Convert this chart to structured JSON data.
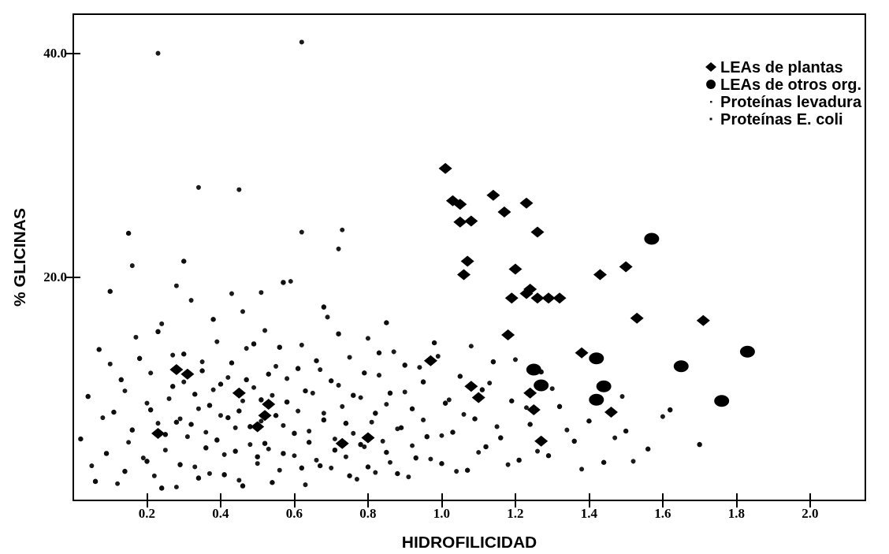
{
  "chart_data": {
    "type": "scatter",
    "xlabel": "HIDROFILICIDAD",
    "ylabel": "% GLICINAS",
    "xlim": [
      0,
      2.15
    ],
    "ylim": [
      0,
      43.5
    ],
    "xticks": [
      {
        "value": 0.2,
        "label": "0.2"
      },
      {
        "value": 0.4,
        "label": "0.4"
      },
      {
        "value": 0.6,
        "label": "0.6"
      },
      {
        "value": 0.8,
        "label": "0.8"
      },
      {
        "value": 1.0,
        "label": "1.0"
      },
      {
        "value": 1.2,
        "label": "1.2"
      },
      {
        "value": 1.4,
        "label": "1.4"
      },
      {
        "value": 1.6,
        "label": "1.6"
      },
      {
        "value": 1.8,
        "label": "1.8"
      },
      {
        "value": 2.0,
        "label": "2.0"
      }
    ],
    "yticks": [
      {
        "value": 20,
        "label": "20.0"
      },
      {
        "value": 40,
        "label": "40.0"
      }
    ],
    "grid": false,
    "legend": "top right",
    "series": [
      {
        "name": "Proteínas levadura",
        "color": "#1a1a1a",
        "marker": "circle",
        "x": [
          0.05,
          0.08,
          0.1,
          0.12,
          0.14,
          0.15,
          0.17,
          0.23,
          0.19,
          0.2,
          0.21,
          0.22,
          0.23,
          0.24,
          0.25,
          0.26,
          0.27,
          0.28,
          0.29,
          0.3,
          0.31,
          0.32,
          0.33,
          0.34,
          0.35,
          0.36,
          0.37,
          0.38,
          0.39,
          0.4,
          0.41,
          0.42,
          0.43,
          0.44,
          0.45,
          0.46,
          0.47,
          0.48,
          0.49,
          0.5,
          0.51,
          0.52,
          0.53,
          0.54,
          0.55,
          0.56,
          0.57,
          0.58,
          0.59,
          0.6,
          0.61,
          0.62,
          0.63,
          0.64,
          0.65,
          0.66,
          0.67,
          0.68,
          0.69,
          0.7,
          0.71,
          0.72,
          0.73,
          0.74,
          0.75,
          0.76,
          0.77,
          0.78,
          0.79,
          0.8,
          0.81,
          0.82,
          0.83,
          0.84,
          0.85,
          0.86,
          0.87,
          0.88,
          0.9,
          0.91,
          0.92,
          0.94,
          0.95,
          0.97,
          0.99,
          1.0,
          1.02,
          1.04,
          1.06,
          1.08,
          1.1,
          1.13,
          1.15,
          1.18,
          1.2,
          1.23,
          1.26,
          1.3,
          1.34,
          1.38,
          1.49,
          1.47,
          1.52,
          1.6,
          0.34,
          0.62,
          0.16,
          0.72,
          0.28,
          0.51,
          0.46,
          0.62,
          0.45,
          0.73
        ],
        "values": [
          3.1,
          7.4,
          12.2,
          1.5,
          9.8,
          5.2,
          14.6,
          40.0,
          3.8,
          8.7,
          11.4,
          2.2,
          6.9,
          15.8,
          4.5,
          9.1,
          13.0,
          1.2,
          7.3,
          10.6,
          5.7,
          17.9,
          3.0,
          8.2,
          12.4,
          6.1,
          2.4,
          9.9,
          14.2,
          7.6,
          4.1,
          11.0,
          18.5,
          6.5,
          1.8,
          8.9,
          13.6,
          5.0,
          10.1,
          3.3,
          7.1,
          15.2,
          4.6,
          9.4,
          12.0,
          2.7,
          6.7,
          10.9,
          19.6,
          4.0,
          8.0,
          13.9,
          1.4,
          6.2,
          9.6,
          3.6,
          11.7,
          7.8,
          16.4,
          2.9,
          5.5,
          10.3,
          8.4,
          3.9,
          12.8,
          6.0,
          1.9,
          9.2,
          4.8,
          14.5,
          7.0,
          2.5,
          11.2,
          5.3,
          8.6,
          3.4,
          13.3,
          6.4,
          9.7,
          2.1,
          4.9,
          11.9,
          7.2,
          3.7,
          12.9,
          5.8,
          9.0,
          2.6,
          7.7,
          13.8,
          4.3,
          10.5,
          6.6,
          3.2,
          12.6,
          8.3,
          4.4,
          10.0,
          6.3,
          2.8,
          9.3,
          5.6,
          3.5,
          7.5,
          28.0,
          24.0,
          21.0,
          22.5,
          19.2,
          18.6,
          16.9,
          41.0,
          27.8,
          24.2
        ]
      },
      {
        "name": "Proteínas E. coli",
        "color": "#0d0d0d",
        "marker": "circle",
        "x": [
          0.02,
          0.04,
          0.06,
          0.07,
          0.09,
          0.11,
          0.13,
          0.14,
          0.16,
          0.18,
          0.2,
          0.21,
          0.23,
          0.24,
          0.25,
          0.27,
          0.28,
          0.29,
          0.3,
          0.32,
          0.33,
          0.34,
          0.35,
          0.36,
          0.37,
          0.38,
          0.39,
          0.4,
          0.41,
          0.42,
          0.43,
          0.44,
          0.45,
          0.46,
          0.47,
          0.48,
          0.49,
          0.5,
          0.51,
          0.52,
          0.53,
          0.54,
          0.55,
          0.56,
          0.57,
          0.58,
          0.6,
          0.61,
          0.62,
          0.63,
          0.64,
          0.66,
          0.67,
          0.68,
          0.7,
          0.71,
          0.72,
          0.74,
          0.75,
          0.76,
          0.78,
          0.79,
          0.8,
          0.82,
          0.83,
          0.85,
          0.86,
          0.88,
          0.89,
          0.9,
          0.92,
          0.93,
          0.95,
          0.96,
          0.98,
          1.0,
          1.01,
          1.03,
          1.05,
          1.07,
          1.09,
          1.11,
          1.12,
          1.14,
          1.16,
          1.19,
          1.21,
          1.24,
          1.27,
          1.29,
          1.32,
          1.36,
          1.4,
          1.44,
          1.5,
          1.56,
          1.62,
          1.7,
          0.1,
          0.57,
          0.3,
          0.68,
          0.15,
          0.85
        ],
        "values": [
          5.5,
          9.3,
          1.7,
          13.5,
          4.2,
          7.9,
          10.8,
          2.6,
          6.3,
          12.7,
          3.5,
          8.1,
          15.1,
          1.1,
          5.9,
          10.2,
          7.0,
          3.2,
          13.1,
          6.8,
          9.5,
          2.0,
          11.6,
          4.7,
          8.5,
          16.2,
          5.4,
          10.4,
          2.3,
          7.4,
          12.3,
          4.4,
          8.0,
          1.3,
          10.8,
          6.6,
          14.0,
          3.9,
          9.0,
          5.1,
          11.3,
          1.6,
          7.6,
          13.7,
          4.2,
          8.8,
          6.0,
          11.8,
          2.9,
          9.8,
          5.2,
          12.5,
          3.1,
          7.2,
          10.7,
          4.5,
          14.9,
          6.9,
          2.2,
          9.4,
          5.0,
          11.4,
          3.0,
          7.8,
          13.2,
          4.3,
          9.6,
          2.4,
          6.5,
          12.1,
          8.2,
          3.8,
          10.6,
          5.7,
          14.1,
          3.3,
          8.7,
          6.1,
          11.1,
          2.7,
          7.3,
          9.9,
          4.8,
          12.4,
          5.6,
          8.9,
          3.6,
          6.8,
          11.5,
          4.0,
          8.4,
          5.3,
          7.1,
          3.4,
          6.2,
          4.6,
          8.1,
          5.0,
          18.7,
          19.5,
          21.4,
          17.3,
          23.9,
          15.9
        ]
      },
      {
        "name": "LEAs de plantas",
        "color": "#000000",
        "marker": "diamond",
        "x": [
          0.23,
          0.28,
          0.31,
          0.45,
          0.53,
          0.52,
          0.5,
          0.73,
          0.8,
          0.97,
          1.01,
          1.03,
          1.05,
          1.05,
          1.08,
          1.07,
          1.06,
          1.08,
          1.1,
          1.14,
          1.17,
          1.23,
          1.26,
          1.2,
          1.19,
          1.23,
          1.24,
          1.26,
          1.29,
          1.32,
          1.18,
          1.24,
          1.25,
          1.27,
          1.38,
          1.43,
          1.5,
          1.53,
          1.71,
          1.46
        ],
        "values": [
          6.0,
          11.7,
          11.3,
          9.6,
          8.6,
          7.6,
          6.6,
          5.1,
          5.6,
          12.5,
          29.7,
          26.8,
          26.5,
          24.9,
          25.0,
          21.4,
          20.2,
          10.2,
          9.2,
          27.3,
          25.8,
          26.6,
          24.0,
          20.7,
          18.1,
          18.5,
          18.9,
          18.1,
          18.1,
          18.1,
          14.8,
          9.6,
          8.1,
          5.3,
          13.2,
          20.2,
          20.9,
          16.3,
          16.1,
          7.9
        ]
      },
      {
        "name": "LEAs de otros org.",
        "color": "#000000",
        "marker": "circle",
        "x": [
          1.25,
          1.27,
          1.42,
          1.44,
          1.42,
          1.57,
          1.65,
          1.76,
          1.83
        ],
        "values": [
          11.7,
          10.3,
          12.7,
          10.2,
          9.0,
          23.4,
          12.0,
          8.9,
          13.3
        ]
      }
    ]
  }
}
